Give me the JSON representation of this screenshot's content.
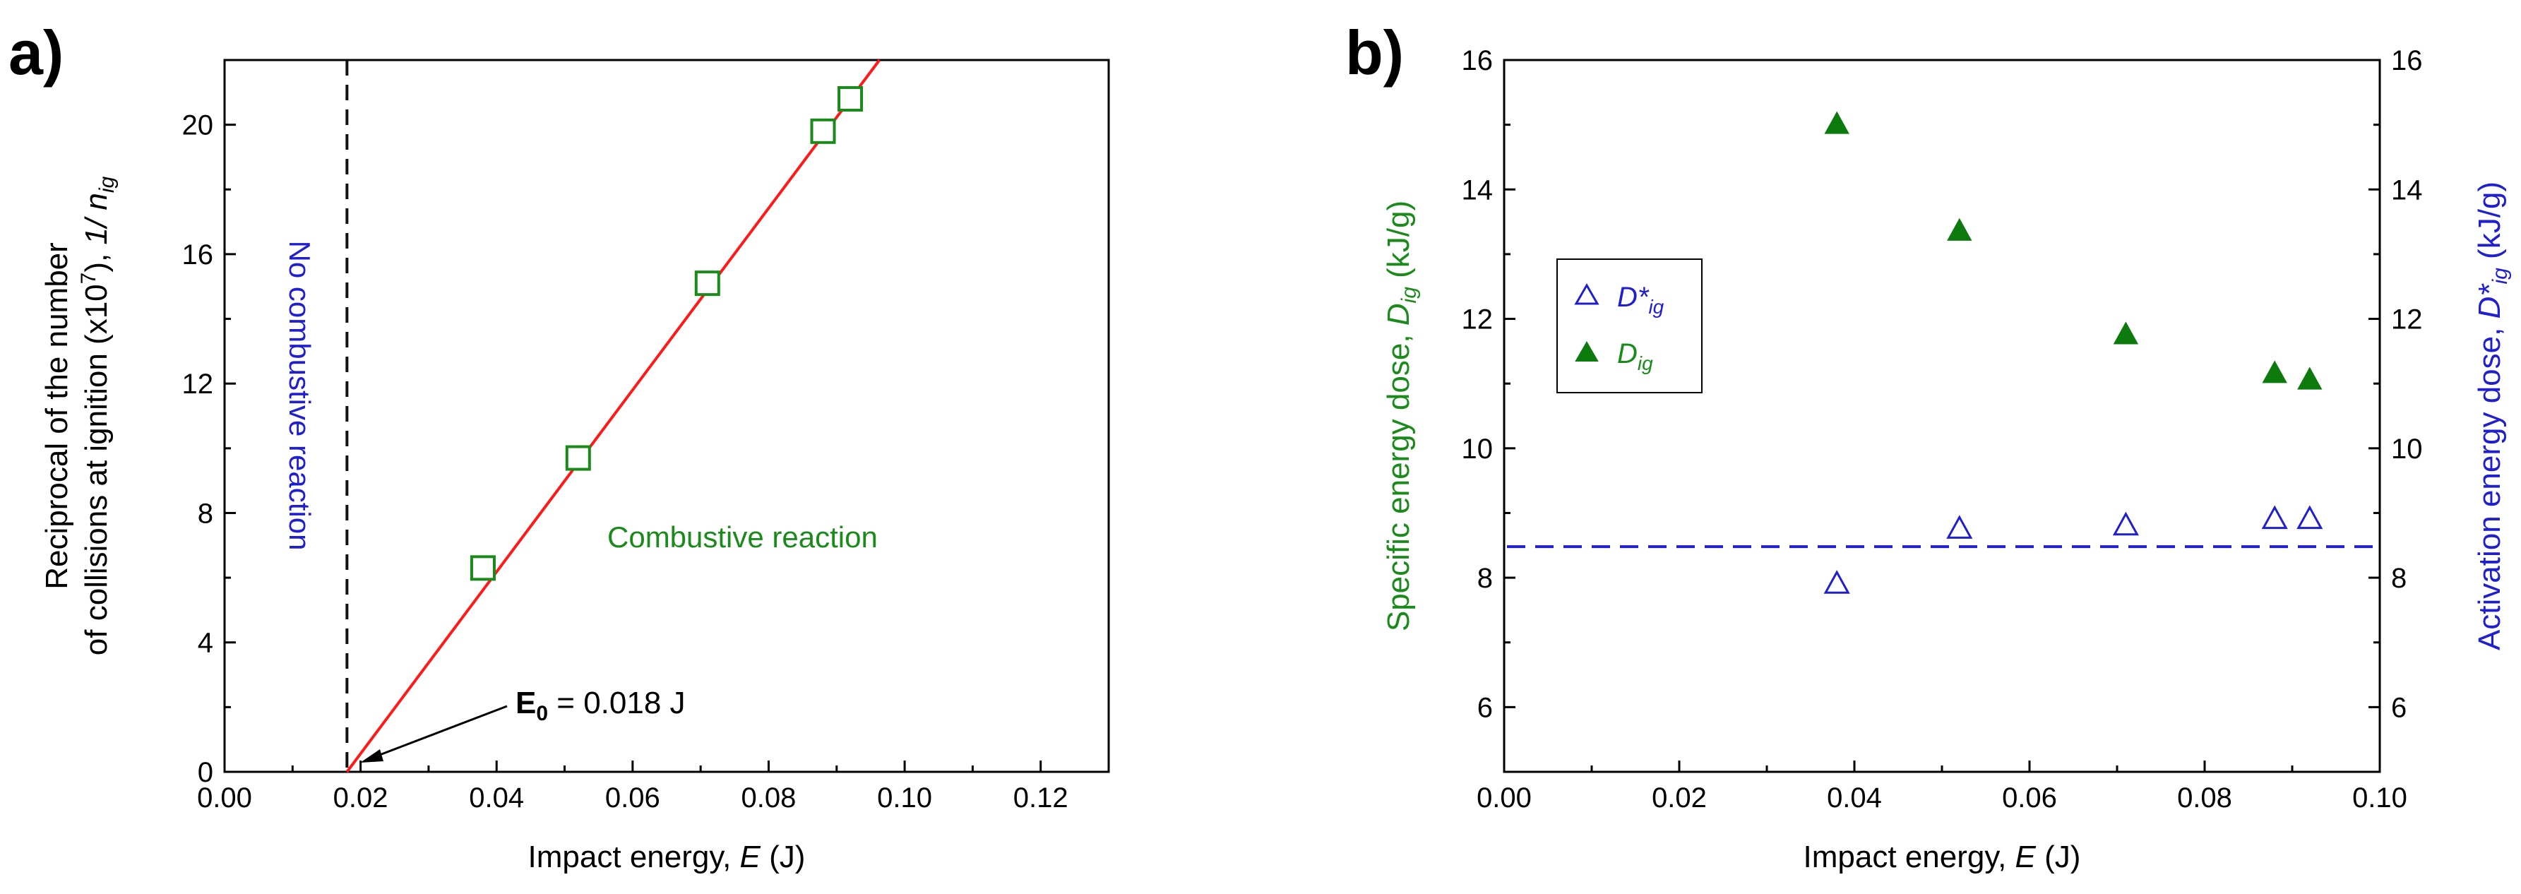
{
  "chart_data": [
    {
      "panel_label": "a)",
      "type": "scatter",
      "xlabel": "Impact energy, ",
      "xlabel_italic": "E",
      "xlabel_unit": " (J)",
      "ylabel_line1": "Reciprocal of the number",
      "ylabel_line2_a": "of collisions at ignition (x10",
      "ylabel_line2_sup": "7",
      "ylabel_line2_b": "), ",
      "ylabel_line2_italic": "1/ n",
      "ylabel_line2_sub": "ig",
      "xlim": [
        0.0,
        0.13
      ],
      "ylim": [
        0,
        22
      ],
      "xticks": [
        "0.00",
        "0.02",
        "0.04",
        "0.06",
        "0.08",
        "0.10",
        "0.12"
      ],
      "xtick_values": [
        0.0,
        0.02,
        0.04,
        0.06,
        0.08,
        0.1,
        0.12
      ],
      "yticks": [
        "0",
        "4",
        "8",
        "12",
        "16",
        "20"
      ],
      "ytick_values": [
        0,
        4,
        8,
        12,
        16,
        20
      ],
      "series": [
        {
          "name": "1/n_ig",
          "marker": "open-square",
          "color": "#1a8a1a",
          "x": [
            0.038,
            0.052,
            0.071,
            0.088,
            0.092
          ],
          "y": [
            6.3,
            9.7,
            15.1,
            19.8,
            20.8
          ]
        }
      ],
      "fit_line": {
        "color": "#ff1a1a",
        "x": [
          0.018,
          0.0963
        ],
        "y": [
          0.0,
          22.0
        ]
      },
      "threshold_line": {
        "x": 0.018,
        "color": "#111111",
        "style": "dashed"
      },
      "annotations": {
        "no_reaction": "No combustive reaction",
        "no_reaction_color": "#1f1fcf",
        "combustive": "Combustive reaction",
        "combustive_color": "#1a8a1a",
        "e0_main": "E",
        "e0_sub": "0",
        "e0_value": " = 0.018 J"
      }
    },
    {
      "panel_label": "b)",
      "type": "scatter",
      "xlabel": "Impact energy, ",
      "xlabel_italic": "E",
      "xlabel_unit": " (J)",
      "ylabel_left_a": "Specific energy dose, ",
      "ylabel_left_italic": "D",
      "ylabel_left_sub": "ig",
      "ylabel_left_b": " (kJ/g)",
      "ylabel_left_color": "#1a8a1a",
      "ylabel_right_a": "Activation energy dose, ",
      "ylabel_right_italic": "D*",
      "ylabel_right_sub": "ig",
      "ylabel_right_b": " (kJ/g)",
      "ylabel_right_color": "#1f1fcf",
      "xlim": [
        0.0,
        0.1
      ],
      "ylim": [
        5,
        16
      ],
      "xticks": [
        "0.00",
        "0.02",
        "0.04",
        "0.06",
        "0.08",
        "0.10"
      ],
      "xtick_values": [
        0.0,
        0.02,
        0.04,
        0.06,
        0.08,
        0.1
      ],
      "yticks": [
        "6",
        "8",
        "10",
        "12",
        "14",
        "16"
      ],
      "ytick_values": [
        6,
        8,
        10,
        12,
        14,
        16
      ],
      "series": [
        {
          "name": "D*_ig",
          "legend_main": "D*",
          "legend_sub": "ig",
          "marker": "open-triangle",
          "color": "#1f1fcf",
          "x": [
            0.038,
            0.052,
            0.071,
            0.088,
            0.092
          ],
          "y": [
            7.9,
            8.75,
            8.8,
            8.9,
            8.9
          ]
        },
        {
          "name": "D_ig",
          "legend_main": "D",
          "legend_sub": "ig",
          "marker": "filled-triangle",
          "color": "#0c7a0c",
          "x": [
            0.038,
            0.052,
            0.071,
            0.088,
            0.092
          ],
          "y": [
            15.0,
            13.35,
            11.75,
            11.15,
            11.05
          ]
        }
      ],
      "reference_line": {
        "y": 8.48,
        "color": "#1f1fcf",
        "style": "dashed"
      }
    }
  ]
}
